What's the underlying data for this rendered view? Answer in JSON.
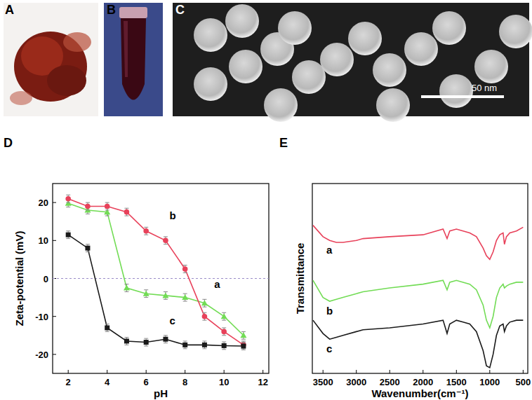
{
  "panels": {
    "labels": [
      "A",
      "B",
      "C",
      "D",
      "E"
    ],
    "scale_bar": "50 nm"
  },
  "chart_data": [
    {
      "type": "line",
      "xlabel": "pH",
      "ylabel": "Zeta-potential (mV)",
      "x": [
        2,
        3,
        4,
        5,
        6,
        7,
        8,
        9,
        10,
        11
      ],
      "xlim": [
        1.2,
        12.3
      ],
      "xticks": [
        2,
        4,
        6,
        8,
        10,
        12
      ],
      "ylim": [
        -25,
        25
      ],
      "yticks": [
        -20,
        -10,
        0,
        10,
        20
      ],
      "reference_line": 0,
      "series": [
        {
          "name": "a",
          "color": "#72dc55",
          "marker": "triangle",
          "values": [
            19.8,
            18,
            17.5,
            -2.5,
            -4,
            -4.5,
            -5,
            -6.5,
            -10,
            -15
          ],
          "errors": [
            1,
            1,
            1,
            1,
            1,
            1,
            1,
            1,
            1,
            1
          ],
          "label_at": [
            9.5,
            -2.5
          ]
        },
        {
          "name": "b",
          "color": "#e8415a",
          "marker": "circle",
          "values": [
            21,
            19,
            19,
            17.5,
            12.5,
            10,
            2.5,
            -10,
            -14,
            -17.5
          ],
          "errors": [
            1,
            1,
            1,
            1,
            1,
            1,
            1,
            1,
            1,
            1
          ],
          "label_at": [
            7.2,
            15.5
          ]
        },
        {
          "name": "c",
          "color": "#1a1a1a",
          "marker": "square",
          "values": [
            11.5,
            8,
            -13,
            -16.5,
            -16.8,
            -16,
            -17.5,
            -17.5,
            -17.7,
            -17.8
          ],
          "errors": [
            1,
            1,
            1,
            1,
            1,
            1,
            1,
            1,
            1,
            1
          ],
          "label_at": [
            7.2,
            -12
          ]
        }
      ]
    },
    {
      "type": "line",
      "xlabel": "Wavenumber(cm⁻¹)",
      "ylabel": "Transmittance",
      "tick_labels": "x",
      "x": [
        3650,
        3500,
        3400,
        3300,
        3200,
        3000,
        2900,
        2500,
        2000,
        1700,
        1640,
        1600,
        1500,
        1400,
        1300,
        1200,
        1100,
        1050,
        1000,
        950,
        900,
        850,
        800,
        780,
        750,
        700,
        600,
        500
      ],
      "xlim": [
        3660,
        430
      ],
      "xticks": [
        3500,
        3000,
        2500,
        2000,
        1500,
        1000,
        500
      ],
      "ylim": [
        0,
        100
      ],
      "series": [
        {
          "name": "a",
          "color": "#e8415a",
          "values": [
            78,
            72,
            70,
            69,
            69,
            70,
            71,
            72,
            73,
            76,
            71,
            75,
            76,
            75,
            74,
            72,
            66,
            62,
            60,
            64,
            70,
            73,
            74,
            68,
            72,
            74,
            75,
            77
          ],
          "label_at": [
            3450,
            63
          ]
        },
        {
          "name": "b",
          "color": "#72dc55",
          "values": [
            49,
            40,
            38,
            39,
            40,
            42,
            43,
            45,
            47,
            49,
            44,
            48,
            49,
            48,
            47,
            44,
            36,
            28,
            24,
            30,
            40,
            45,
            47,
            45,
            46,
            47,
            48,
            48
          ],
          "label_at": [
            3450,
            31
          ]
        },
        {
          "name": "c",
          "color": "#1a1a1a",
          "values": [
            28,
            21,
            18,
            19,
            20,
            22,
            23,
            24,
            26,
            28,
            21,
            26,
            28,
            27,
            26,
            22,
            12,
            4,
            3,
            10,
            20,
            25,
            26,
            22,
            25,
            27,
            28,
            28
          ],
          "label_at": [
            3450,
            11
          ]
        }
      ]
    }
  ]
}
